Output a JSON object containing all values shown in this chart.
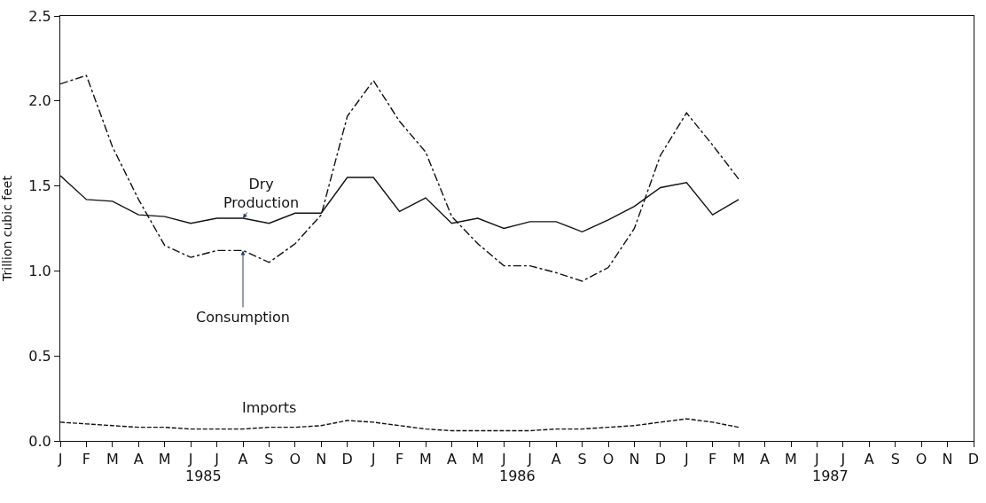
{
  "chart_data": {
    "type": "line",
    "ylabel": "Trillion cubic feet",
    "categories": [
      "J",
      "F",
      "M",
      "A",
      "M",
      "J",
      "J",
      "A",
      "S",
      "O",
      "N",
      "D",
      "J",
      "F",
      "M",
      "A",
      "M",
      "J",
      "J",
      "A",
      "S",
      "O",
      "N",
      "D",
      "J",
      "F",
      "M",
      "A",
      "M",
      "J",
      "J",
      "A",
      "S",
      "O",
      "N",
      "D"
    ],
    "annotations": [
      "1985",
      "1986",
      "1987"
    ],
    "series": [
      {
        "name": "Dry\nProduction",
        "color": "#111111",
        "line_style": "solid",
        "values": [
          1.56,
          1.42,
          1.41,
          1.33,
          1.32,
          1.28,
          1.31,
          1.31,
          1.28,
          1.34,
          1.34,
          1.55,
          1.55,
          1.35,
          1.43,
          1.28,
          1.31,
          1.25,
          1.29,
          1.29,
          1.23,
          1.3,
          1.38,
          1.49,
          1.52,
          1.33,
          1.42,
          null,
          null,
          null,
          null,
          null,
          null,
          null,
          null,
          null
        ]
      },
      {
        "name": "Consumption",
        "color": "#111111",
        "line_style": "dashdot",
        "values": [
          2.1,
          2.15,
          1.73,
          1.42,
          1.15,
          1.08,
          1.12,
          1.12,
          1.05,
          1.16,
          1.33,
          1.91,
          2.12,
          1.88,
          1.7,
          1.32,
          1.16,
          1.03,
          1.03,
          0.99,
          0.94,
          1.02,
          1.25,
          1.68,
          1.93,
          1.74,
          1.54,
          null,
          null,
          null,
          null,
          null,
          null,
          null,
          null,
          null
        ]
      },
      {
        "name": "Imports",
        "color": "#111111",
        "line_style": "dashed",
        "values": [
          0.11,
          0.1,
          0.09,
          0.08,
          0.08,
          0.07,
          0.07,
          0.07,
          0.08,
          0.08,
          0.09,
          0.12,
          0.11,
          0.09,
          0.07,
          0.06,
          0.06,
          0.06,
          0.06,
          0.07,
          0.07,
          0.08,
          0.09,
          0.11,
          0.13,
          0.11,
          0.08,
          null,
          null,
          null,
          null,
          null,
          null,
          null,
          null,
          null
        ]
      }
    ],
    "ylim": [
      0,
      2.5
    ],
    "yticks": [
      {
        "value": 0,
        "label": "0.0"
      },
      {
        "value": 0.5,
        "label": "0.5"
      },
      {
        "value": 1.0,
        "label": "1.0"
      },
      {
        "value": 1.5,
        "label": "1.5"
      },
      {
        "value": 2.0,
        "label": "2.0"
      },
      {
        "value": 2.5,
        "label": "2.5"
      }
    ],
    "legend": false,
    "marker": "none"
  }
}
